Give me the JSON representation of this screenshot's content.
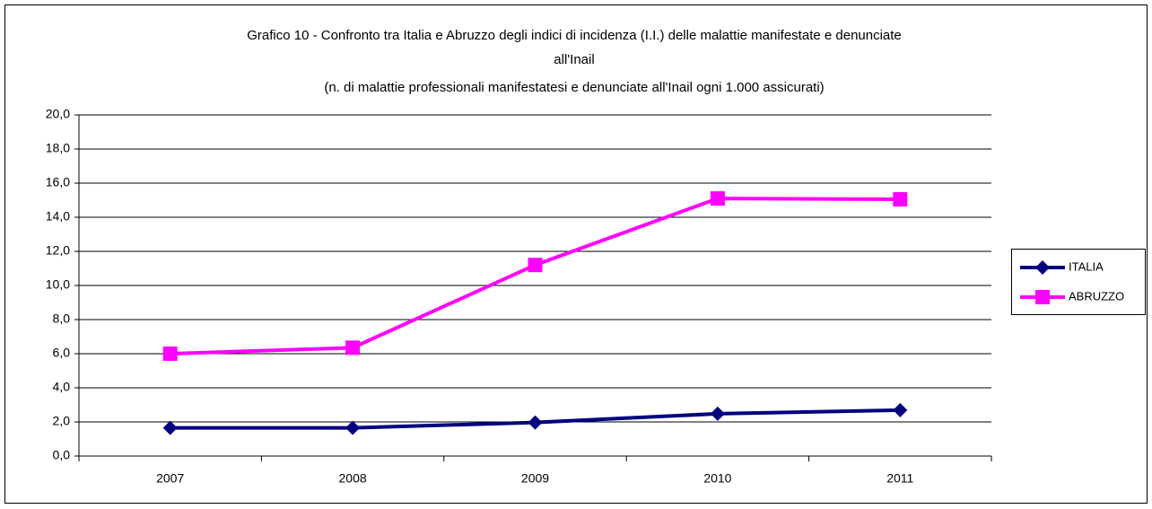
{
  "chart_data": {
    "type": "line",
    "title": "Grafico 10 - Confronto tra Italia e Abruzzo degli  indici di incidenza (I.I.) delle malattie manifestate e denunciate\nall'Inail",
    "subtitle": "(n. di malattie professionali manifestatesi e denunciate all'Inail ogni 1.000 assicurati)",
    "categories": [
      "2007",
      "2008",
      "2009",
      "2010",
      "2011"
    ],
    "series": [
      {
        "name": "ITALIA",
        "color": "#000080",
        "marker": "diamond",
        "values": [
          1.65,
          1.65,
          1.97,
          2.48,
          2.69
        ]
      },
      {
        "name": "ABRUZZO",
        "color": "#ff00ff",
        "marker": "square",
        "values": [
          6.0,
          6.35,
          11.2,
          15.1,
          15.05
        ]
      }
    ],
    "ylim": [
      0,
      20
    ],
    "yticks": [
      {
        "value": 0,
        "label": "0,0"
      },
      {
        "value": 2,
        "label": "2,0"
      },
      {
        "value": 4,
        "label": "4,0"
      },
      {
        "value": 6,
        "label": "6,0"
      },
      {
        "value": 8,
        "label": "8,0"
      },
      {
        "value": 10,
        "label": "10,0"
      },
      {
        "value": 12,
        "label": "12,0"
      },
      {
        "value": 14,
        "label": "14,0"
      },
      {
        "value": 16,
        "label": "16,0"
      },
      {
        "value": 18,
        "label": "18,0"
      },
      {
        "value": 20,
        "label": "20,0"
      }
    ],
    "grid": true,
    "legend": "right"
  }
}
